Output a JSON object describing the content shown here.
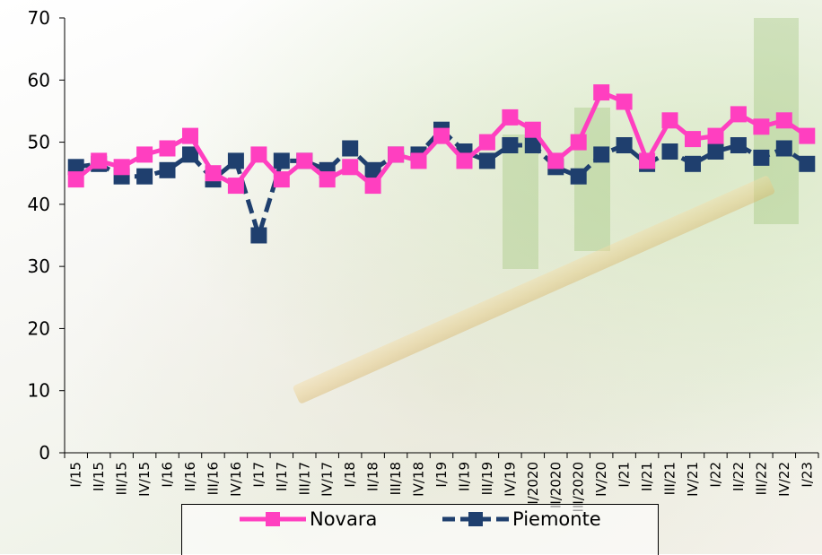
{
  "chart_data": {
    "type": "line",
    "title": "",
    "xlabel": "",
    "ylabel": "",
    "ylim": [
      0,
      70
    ],
    "yticks": [
      0,
      10,
      20,
      30,
      40,
      50,
      60,
      70
    ],
    "categories": [
      "I/15",
      "II/15",
      "III/15",
      "IV/15",
      "I/16",
      "II/16",
      "III/16",
      "IV/16",
      "I/17",
      "II/17",
      "III/17",
      "IV/17",
      "I/18",
      "II/18",
      "III/18",
      "IV/18",
      "I/19",
      "II/19",
      "III/19",
      "IV/19",
      "I/2020",
      "II/2020",
      "III/2020",
      "IV/20",
      "I/21",
      "II/21",
      "III/21",
      "IV/21",
      "I/22",
      "II/22",
      "III/22",
      "IV/22",
      "I/23"
    ],
    "grid": false,
    "legend_position": "bottom",
    "series": [
      {
        "name": "Novara",
        "color": "#ff3fc0",
        "values": [
          44,
          47,
          46,
          48,
          49,
          51,
          45,
          43,
          48,
          44,
          47,
          44,
          46,
          43,
          48,
          47,
          51,
          47,
          50,
          54,
          52,
          47,
          50,
          58,
          56.5,
          47,
          53.5,
          50.5,
          51,
          54.5,
          52.5,
          53.5,
          51
        ]
      },
      {
        "name": "Piemonte",
        "color": "#1f3f6e",
        "values": [
          46,
          46.5,
          44.5,
          44.5,
          45.5,
          48,
          44,
          47,
          35,
          47,
          47,
          45.5,
          49,
          45.5,
          48,
          48,
          52,
          48.5,
          47,
          49.5,
          49.5,
          46,
          44.5,
          48,
          49.5,
          46.5,
          48.5,
          46.5,
          48.5,
          49.5,
          47.5,
          49,
          46.5
        ]
      }
    ]
  }
}
